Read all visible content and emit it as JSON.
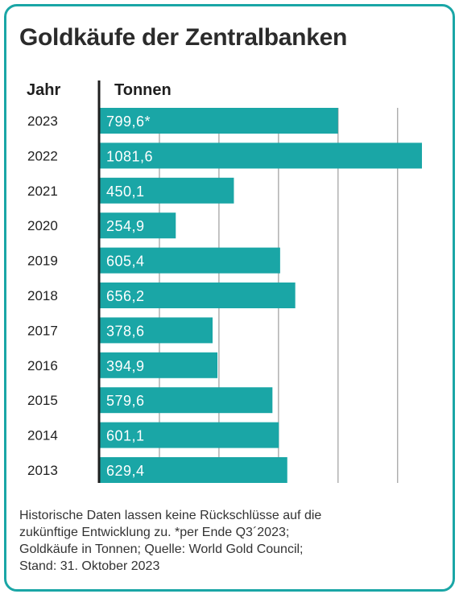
{
  "title": "Goldkäufe der Zentralbanken",
  "headers": {
    "year": "Jahr",
    "value": "Tonnen"
  },
  "colors": {
    "bar": "#1aa6a6",
    "frame": "#1aa6a6",
    "grid": "#8a8a8a",
    "axis": "#1f1f1f"
  },
  "chart_data": {
    "type": "bar",
    "orientation": "horizontal",
    "categories": [
      "2023",
      "2022",
      "2021",
      "2020",
      "2019",
      "2018",
      "2017",
      "2016",
      "2015",
      "2014",
      "2013"
    ],
    "values": [
      799.6,
      1081.6,
      450.1,
      254.9,
      605.4,
      656.2,
      378.6,
      394.9,
      579.6,
      601.1,
      629.4
    ],
    "value_labels": [
      "799,6*",
      "1081,6",
      "450,1",
      "254,9",
      "605,4",
      "656,2",
      "378,6",
      "394,9",
      "579,6",
      "601,1",
      "629,4"
    ],
    "xlabel": "Tonnen",
    "ylabel": "Jahr",
    "xlim": [
      0,
      1100
    ],
    "grid_step": 200,
    "grid": true
  },
  "footnote": [
    "Historische Daten lassen keine Rückschlüsse auf die",
    "zukünftige Entwicklung zu. *per Ende Q3´2023;",
    "Goldkäufe in Tonnen; Quelle: World Gold Council;",
    "Stand: 31. Oktober 2023"
  ]
}
